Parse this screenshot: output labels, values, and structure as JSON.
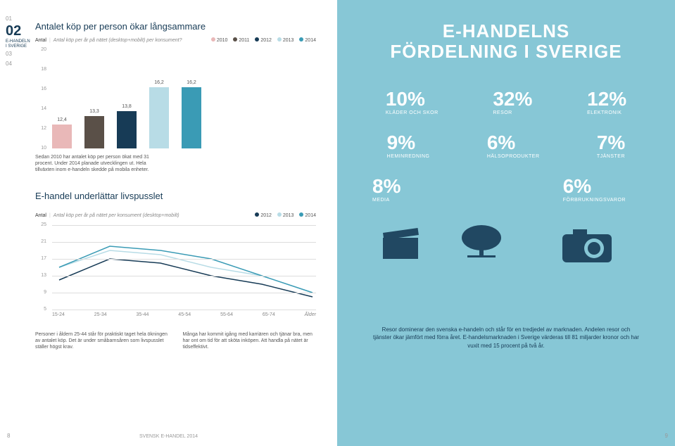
{
  "sideNav": {
    "items": [
      "01"
    ],
    "current": "02",
    "sub": "E-HANDELN\nI SVERIGE",
    "after": [
      "03",
      "04"
    ]
  },
  "chart1": {
    "title": "Antalet köp per person ökar långsammare",
    "axisLabel": "Antal",
    "desc": "Antal köp per år på nätet (desktop+mobilt) per konsument?",
    "legend": [
      {
        "year": "2010",
        "color": "#e9b8b8"
      },
      {
        "year": "2011",
        "color": "#5a5048"
      },
      {
        "year": "2012",
        "color": "#173b56"
      },
      {
        "year": "2013",
        "color": "#b8dce6"
      },
      {
        "year": "2014",
        "color": "#3a9bb5"
      }
    ],
    "yTicks": [
      20,
      18,
      16,
      14,
      12,
      10
    ],
    "yMax": 20,
    "yMin": 10,
    "bars": [
      {
        "label": "12,4",
        "val": 12.4,
        "color": "#e9b8b8"
      },
      {
        "label": "13,3",
        "val": 13.3,
        "color": "#5a5048"
      },
      {
        "label": "13,8",
        "val": 13.8,
        "color": "#173b56"
      },
      {
        "label": "16,2",
        "val": 16.2,
        "color": "#b8dce6"
      },
      {
        "label": "16,2",
        "val": 16.2,
        "color": "#3a9bb5"
      }
    ],
    "note": "Sedan 2010 har antalet köp per person ökat med 31 procent. Under 2014 planade utvecklingen ut. Hela tillväxten inom e-handeln skedde på mobila enheter."
  },
  "chart2": {
    "title": "E-handel underlättar livspusslet",
    "axisLabel": "Antal",
    "desc": "Antal köp per år på nätet per konsument (desktop+mobilt)",
    "legend": [
      {
        "year": "2012",
        "color": "#173b56"
      },
      {
        "year": "2013",
        "color": "#b8dce6"
      },
      {
        "year": "2014",
        "color": "#3a9bb5"
      }
    ],
    "yTicks": [
      25,
      21,
      17,
      13,
      9,
      5
    ],
    "yMax": 25,
    "yMin": 5,
    "xCats": [
      "15-24",
      "25-34",
      "35-44",
      "45-54",
      "55-64",
      "65-74",
      "Ålder"
    ],
    "series": [
      {
        "color": "#173b56",
        "vals": [
          12,
          17,
          16,
          13,
          11,
          8
        ]
      },
      {
        "color": "#b8dce6",
        "vals": [
          15,
          19,
          18,
          15,
          13,
          9
        ]
      },
      {
        "color": "#3a9bb5",
        "vals": [
          15,
          20,
          19,
          17,
          13,
          9
        ]
      }
    ]
  },
  "bottomLeft": "Personer i åldern 25-44 står för praktiskt taget hela ökningen av antalet köp. Det är under småbarnsåren som livspusslet ställer högst krav.",
  "bottomRight": "Många har kommit igång med karriären och tjänar bra, men har ont om tid för att sköta inköpen. Att handla på nätet är tidseffektivt.",
  "footer": "SVENSK E-HANDEL 2014",
  "pageLeft": "8",
  "pageRight": "9",
  "right": {
    "title": "E-HANDELNS FÖRDELNING I SVERIGE",
    "stats": [
      [
        {
          "val": "10%",
          "lbl": "KLÄDER OCH SKOR"
        },
        {
          "val": "32%",
          "lbl": "RESOR"
        },
        {
          "val": "12%",
          "lbl": "ELEKTRONIK"
        }
      ],
      [
        {
          "val": "9%",
          "lbl": "HEMINREDNING"
        },
        {
          "val": "6%",
          "lbl": "HÄLSOPRODUKTER"
        },
        {
          "val": "7%",
          "lbl": "TJÄNSTER"
        }
      ],
      [
        {
          "val": "8%",
          "lbl": "MEDIA"
        },
        {
          "val": "6%",
          "lbl": "FÖRBRUKNINGSVAROR"
        }
      ]
    ],
    "bottomText": "Resor dominerar den svenska e-handeln och står för en tredjedel av marknaden. Andelen resor och tjänster ökar jämfört med förra året. E-handelsmarknaden i Sverige värderas till 81 miljarder kronor och har vuxit med 15 procent på två år."
  }
}
